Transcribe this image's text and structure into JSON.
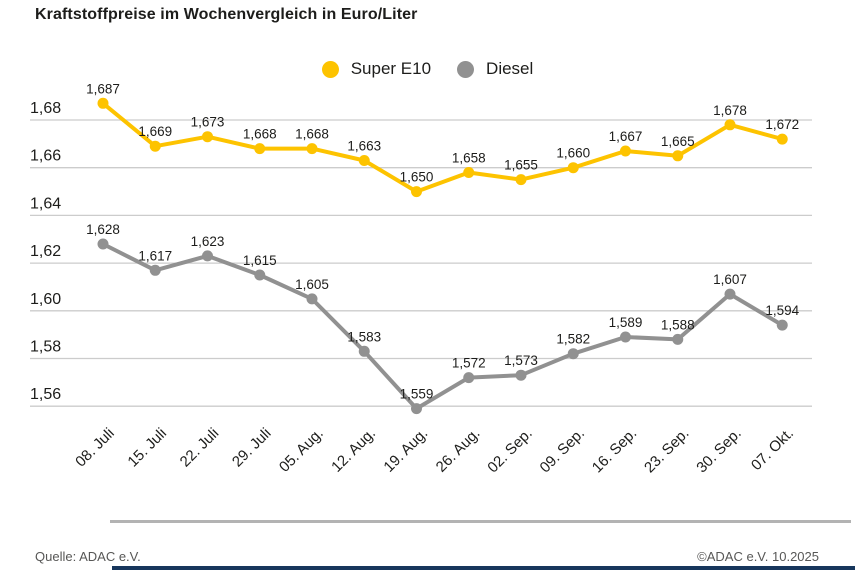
{
  "title": "Kraftstoffpreise im Wochenvergleich in Euro/Liter",
  "footer": {
    "source": "Quelle: ADAC e.V.",
    "copyright": "©ADAC e.V. 10.2025"
  },
  "colors": {
    "super_e10": "#fdc300",
    "diesel": "#919191",
    "grid": "#cccccc",
    "text": "#1d1d1b",
    "footer_text": "#575756",
    "divider": "#b3b3b3",
    "bottom_bar": "#17365c"
  },
  "chart_data": {
    "type": "line",
    "title": "Kraftstoffpreise im Wochenvergleich in Euro/Liter",
    "xlabel": "",
    "ylabel": "Euro/Liter",
    "grid": true,
    "legend_position": "top-center",
    "ylim": [
      1.55,
      1.695
    ],
    "categories": [
      "08. Juli",
      "15. Juli",
      "22. Juli",
      "29. Juli",
      "05. Aug.",
      "12. Aug.",
      "19. Aug.",
      "26. Aug.",
      "02. Sep.",
      "09. Sep.",
      "16. Sep.",
      "23. Sep.",
      "30. Sep.",
      "07. Okt."
    ],
    "y_ticks": {
      "values": [
        1.68,
        1.66,
        1.64,
        1.62,
        1.6,
        1.58,
        1.56
      ],
      "labels": [
        "1,68",
        "1,66",
        "1,64",
        "1,62",
        "1,60",
        "1,58",
        "1,56"
      ]
    },
    "series": [
      {
        "name": "Super E10",
        "color": "#fdc300",
        "values": [
          1.687,
          1.669,
          1.673,
          1.668,
          1.668,
          1.663,
          1.65,
          1.658,
          1.655,
          1.66,
          1.667,
          1.665,
          1.678,
          1.672
        ],
        "labels": [
          "1,687",
          "1,669",
          "1,673",
          "1,668",
          "1,668",
          "1,663",
          "1,650",
          "1,658",
          "1,655",
          "1,660",
          "1,667",
          "1,665",
          "1,678",
          "1,672"
        ]
      },
      {
        "name": "Diesel",
        "color": "#919191",
        "values": [
          1.628,
          1.617,
          1.623,
          1.615,
          1.605,
          1.583,
          1.559,
          1.572,
          1.573,
          1.582,
          1.589,
          1.588,
          1.607,
          1.594
        ],
        "labels": [
          "1,628",
          "1,617",
          "1,623",
          "1,615",
          "1,605",
          "1,583",
          "1,559",
          "1,572",
          "1,573",
          "1,582",
          "1,589",
          "1,588",
          "1,607",
          "1,594"
        ]
      }
    ]
  }
}
